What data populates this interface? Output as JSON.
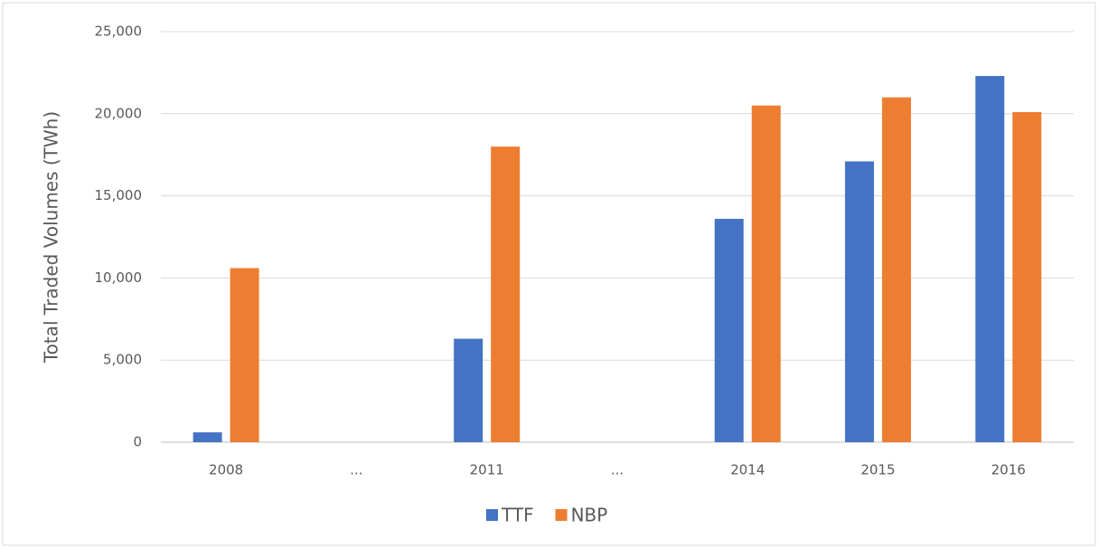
{
  "chart_data": {
    "type": "bar",
    "y_label": "Total Traded Volumes (TWh)",
    "categories": [
      "2008",
      "...",
      "2011",
      "...",
      "2014",
      "2015",
      "2016"
    ],
    "series": [
      {
        "name": "TTF",
        "color": "#4472c4",
        "values": [
          600,
          null,
          6300,
          null,
          13600,
          17100,
          22300
        ]
      },
      {
        "name": "NBP",
        "color": "#ed7d31",
        "values": [
          10600,
          null,
          18000,
          null,
          20500,
          21000,
          20100
        ]
      }
    ],
    "ylim": [
      0,
      25000
    ],
    "yticks": [
      0,
      {
        "value": 5000,
        "label": "5,000"
      },
      {
        "value": 10000,
        "label": "10,000"
      },
      {
        "value": 15000,
        "label": "15,000"
      },
      {
        "value": 20000,
        "label": "20,000"
      },
      {
        "value": 25000,
        "label": "25,000"
      }
    ],
    "grid": true,
    "legend": "bottom"
  }
}
